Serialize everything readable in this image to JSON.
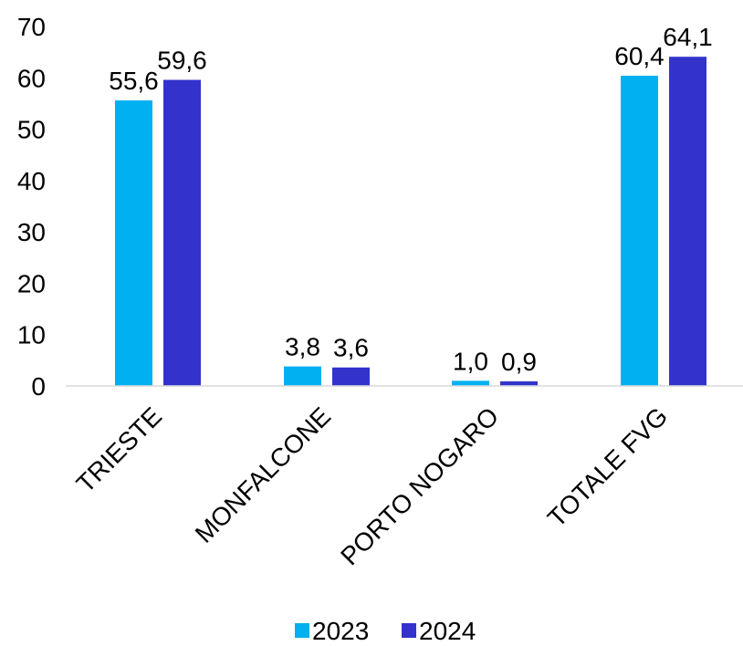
{
  "chart_data": {
    "type": "bar",
    "categories": [
      "TRIESTE",
      "MONFALCONE",
      "PORTO NOGARO",
      "TOTALE FVG"
    ],
    "series": [
      {
        "name": "2023",
        "color": "#00b0f0",
        "values": [
          55.6,
          3.8,
          1.0,
          60.4
        ],
        "labels": [
          "55,6",
          "3,8",
          "1,0",
          "60,4"
        ]
      },
      {
        "name": "2024",
        "color": "#3333cc",
        "values": [
          59.6,
          3.6,
          0.9,
          64.1
        ],
        "labels": [
          "59,6",
          "3,6",
          "0,9",
          "64,1"
        ]
      }
    ],
    "ylim": [
      0,
      70
    ],
    "yticks": [
      0,
      10,
      20,
      30,
      40,
      50,
      60,
      70
    ],
    "title": "",
    "xlabel": "",
    "ylabel": "",
    "grid": false,
    "legend": "bottom-center"
  }
}
